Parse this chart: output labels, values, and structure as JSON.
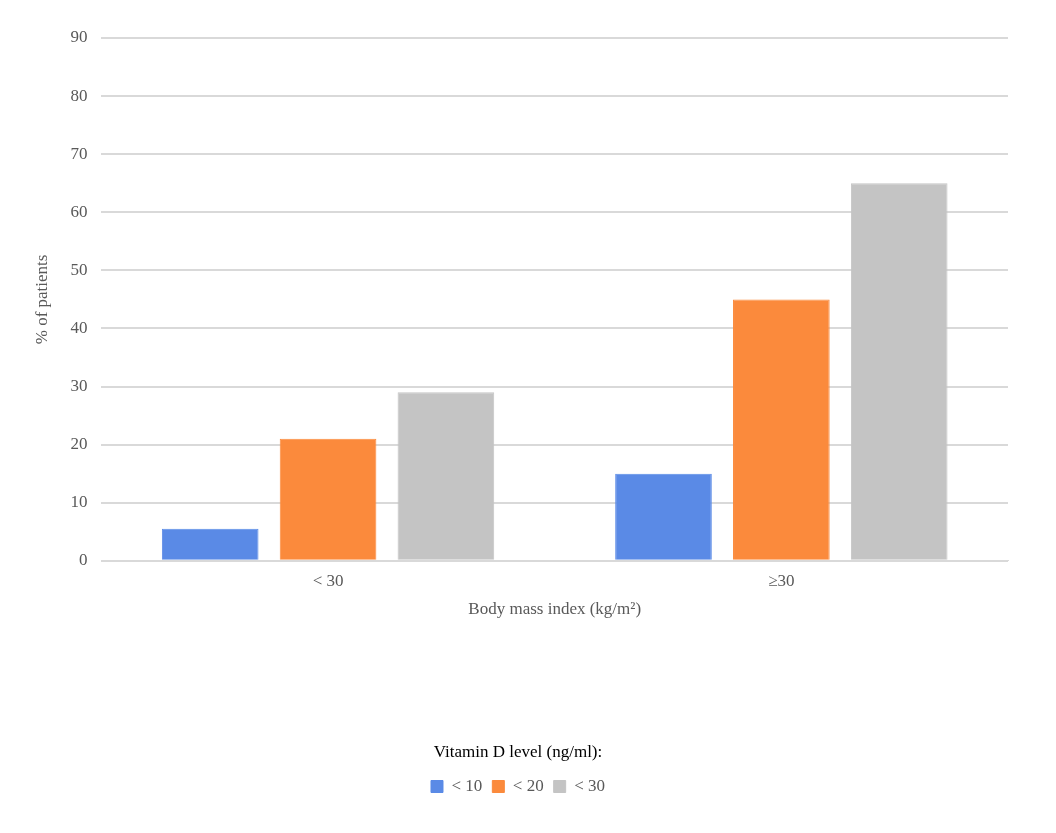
{
  "chart_data": {
    "type": "bar",
    "xlabel": "Body mass index (kg/m²)",
    "ylabel": "% of patients",
    "legend_title": "Vitamin D level (ng/ml):",
    "categories": [
      "< 30",
      "≥30"
    ],
    "series": [
      {
        "name": "< 10",
        "color": "#5a8ae6",
        "values": [
          5.5,
          15
        ]
      },
      {
        "name": "< 20",
        "color": "#fb8a3c",
        "values": [
          21,
          45
        ]
      },
      {
        "name": "< 30",
        "color": "#c4c4c4",
        "values": [
          29,
          65
        ]
      }
    ],
    "ylim": [
      0,
      90
    ],
    "yticks": [
      0,
      10,
      20,
      30,
      40,
      50,
      60,
      70,
      80,
      90
    ],
    "grid": "y",
    "legend": "bottom"
  }
}
